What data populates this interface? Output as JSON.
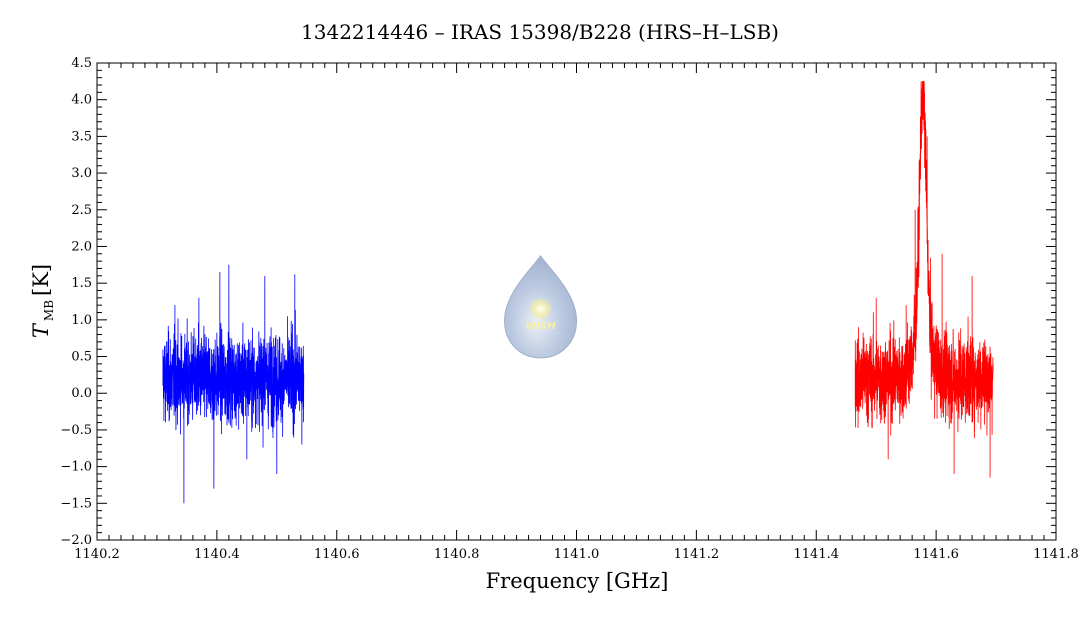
{
  "chart_data": {
    "type": "line",
    "title": "1342214446 – IRAS 15398/B228 (HRS–H–LSB)",
    "xlabel": "Frequency [GHz]",
    "ylabel_main": "T",
    "ylabel_sub": "MB",
    "ylabel_unit": "[K]",
    "xlim": [
      1140.2,
      1141.8
    ],
    "ylim": [
      -2.0,
      4.5
    ],
    "x_ticks": [
      "1140.2",
      "1140.4",
      "1140.6",
      "1140.8",
      "1141.0",
      "1141.2",
      "1141.4",
      "1141.6",
      "1141.8"
    ],
    "y_ticks": [
      "−2.0",
      "−1.5",
      "−1.0",
      "−0.5",
      "0.0",
      "0.5",
      "1.0",
      "1.5",
      "2.0",
      "2.5",
      "3.0",
      "3.5",
      "4.0",
      "4.5"
    ],
    "grid": false,
    "series": [
      {
        "color": "#0000ff",
        "x_range": [
          1140.31,
          1140.545
        ],
        "baseline": 0.2,
        "noise_range": [
          -1.5,
          1.78
        ],
        "points": [
          [
            1140.31,
            0.1
          ],
          [
            1140.33,
            1.2
          ],
          [
            1140.345,
            -1.5
          ],
          [
            1140.37,
            1.3
          ],
          [
            1140.395,
            -1.3
          ],
          [
            1140.405,
            1.65
          ],
          [
            1140.42,
            1.75
          ],
          [
            1140.45,
            -0.9
          ],
          [
            1140.48,
            1.6
          ],
          [
            1140.5,
            -1.1
          ],
          [
            1140.53,
            1.62
          ],
          [
            1140.545,
            0.2
          ]
        ]
      },
      {
        "color": "#ff0000",
        "x_range": [
          1141.465,
          1141.695
        ],
        "baseline": 0.2,
        "noise_range": [
          -1.15,
          4.25
        ],
        "points": [
          [
            1141.465,
            0.3
          ],
          [
            1141.5,
            1.3
          ],
          [
            1141.52,
            -0.9
          ],
          [
            1141.55,
            1.2
          ],
          [
            1141.565,
            2.5
          ],
          [
            1141.575,
            3.8
          ],
          [
            1141.58,
            4.25
          ],
          [
            1141.585,
            3.5
          ],
          [
            1141.59,
            1.0
          ],
          [
            1141.61,
            1.9
          ],
          [
            1141.63,
            -1.1
          ],
          [
            1141.66,
            1.6
          ],
          [
            1141.69,
            -1.15
          ],
          [
            1141.695,
            0.3
          ]
        ]
      }
    ]
  },
  "logo": {
    "text": "WISH",
    "x": 1140.94,
    "y": 1.0
  }
}
